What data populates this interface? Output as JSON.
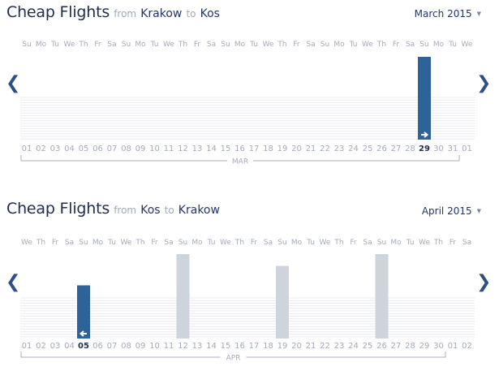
{
  "outbound": {
    "title": "Cheap Flights",
    "from_label": "from",
    "from_city": "Krakow",
    "to_label": "to",
    "to_city": "Kos",
    "month_select": "March 2015",
    "caret_icon": "chevron-down-icon",
    "month_label": "MAR",
    "weekdays": [
      "Su",
      "Mo",
      "Tu",
      "We",
      "Th",
      "Fr",
      "Sa",
      "Su",
      "Mo",
      "Tu",
      "We",
      "Th",
      "Fr",
      "Sa",
      "Su",
      "Mo",
      "Tu",
      "We",
      "Th",
      "Fr",
      "Sa",
      "Su",
      "Mo",
      "Tu",
      "We",
      "Th",
      "Fr",
      "Sa",
      "Su",
      "Mo",
      "Tu",
      "We"
    ],
    "days": [
      "01",
      "02",
      "03",
      "04",
      "05",
      "06",
      "07",
      "08",
      "09",
      "10",
      "11",
      "12",
      "13",
      "14",
      "15",
      "16",
      "17",
      "18",
      "19",
      "20",
      "21",
      "22",
      "23",
      "24",
      "25",
      "26",
      "27",
      "28",
      "29",
      "30",
      "31",
      "01"
    ],
    "selected_day": "29",
    "selected_icon": "arrow-right-icon",
    "accent": "#2e6399",
    "inactive_color": "#cdd4dc",
    "bars": [
      {
        "day": "29",
        "level": 1.0,
        "selected": true
      }
    ]
  },
  "return": {
    "title": "Cheap Flights",
    "from_label": "from",
    "from_city": "Kos",
    "to_label": "to",
    "to_city": "Krakow",
    "month_select": "April 2015",
    "caret_icon": "chevron-down-icon",
    "month_label": "APR",
    "weekdays": [
      "We",
      "Th",
      "Fr",
      "Sa",
      "Su",
      "Mo",
      "Tu",
      "We",
      "Th",
      "Fr",
      "Sa",
      "Su",
      "Mo",
      "Tu",
      "We",
      "Th",
      "Fr",
      "Sa",
      "Su",
      "Mo",
      "Tu",
      "We",
      "Th",
      "Fr",
      "Sa",
      "Su",
      "Mo",
      "Tu",
      "We",
      "Th",
      "Fr",
      "Sa"
    ],
    "days": [
      "01",
      "02",
      "03",
      "04",
      "05",
      "06",
      "07",
      "08",
      "09",
      "10",
      "11",
      "12",
      "13",
      "14",
      "15",
      "16",
      "17",
      "18",
      "19",
      "20",
      "21",
      "22",
      "23",
      "24",
      "25",
      "26",
      "27",
      "28",
      "29",
      "30",
      "01",
      "02"
    ],
    "selected_day": "05",
    "selected_icon": "arrow-left-icon",
    "accent": "#2e6399",
    "inactive_color": "#cdd4dc",
    "bars": [
      {
        "day": "05",
        "level": 0.63,
        "selected": true
      },
      {
        "day": "12",
        "level": 1.0,
        "selected": false
      },
      {
        "day": "19",
        "level": 0.86,
        "selected": false
      },
      {
        "day": "26",
        "level": 1.0,
        "selected": false
      }
    ]
  },
  "nav": {
    "prev_icon": "chevron-left-icon",
    "next_icon": "chevron-right-icon",
    "prev_glyph": "❮",
    "next_glyph": "❯"
  }
}
